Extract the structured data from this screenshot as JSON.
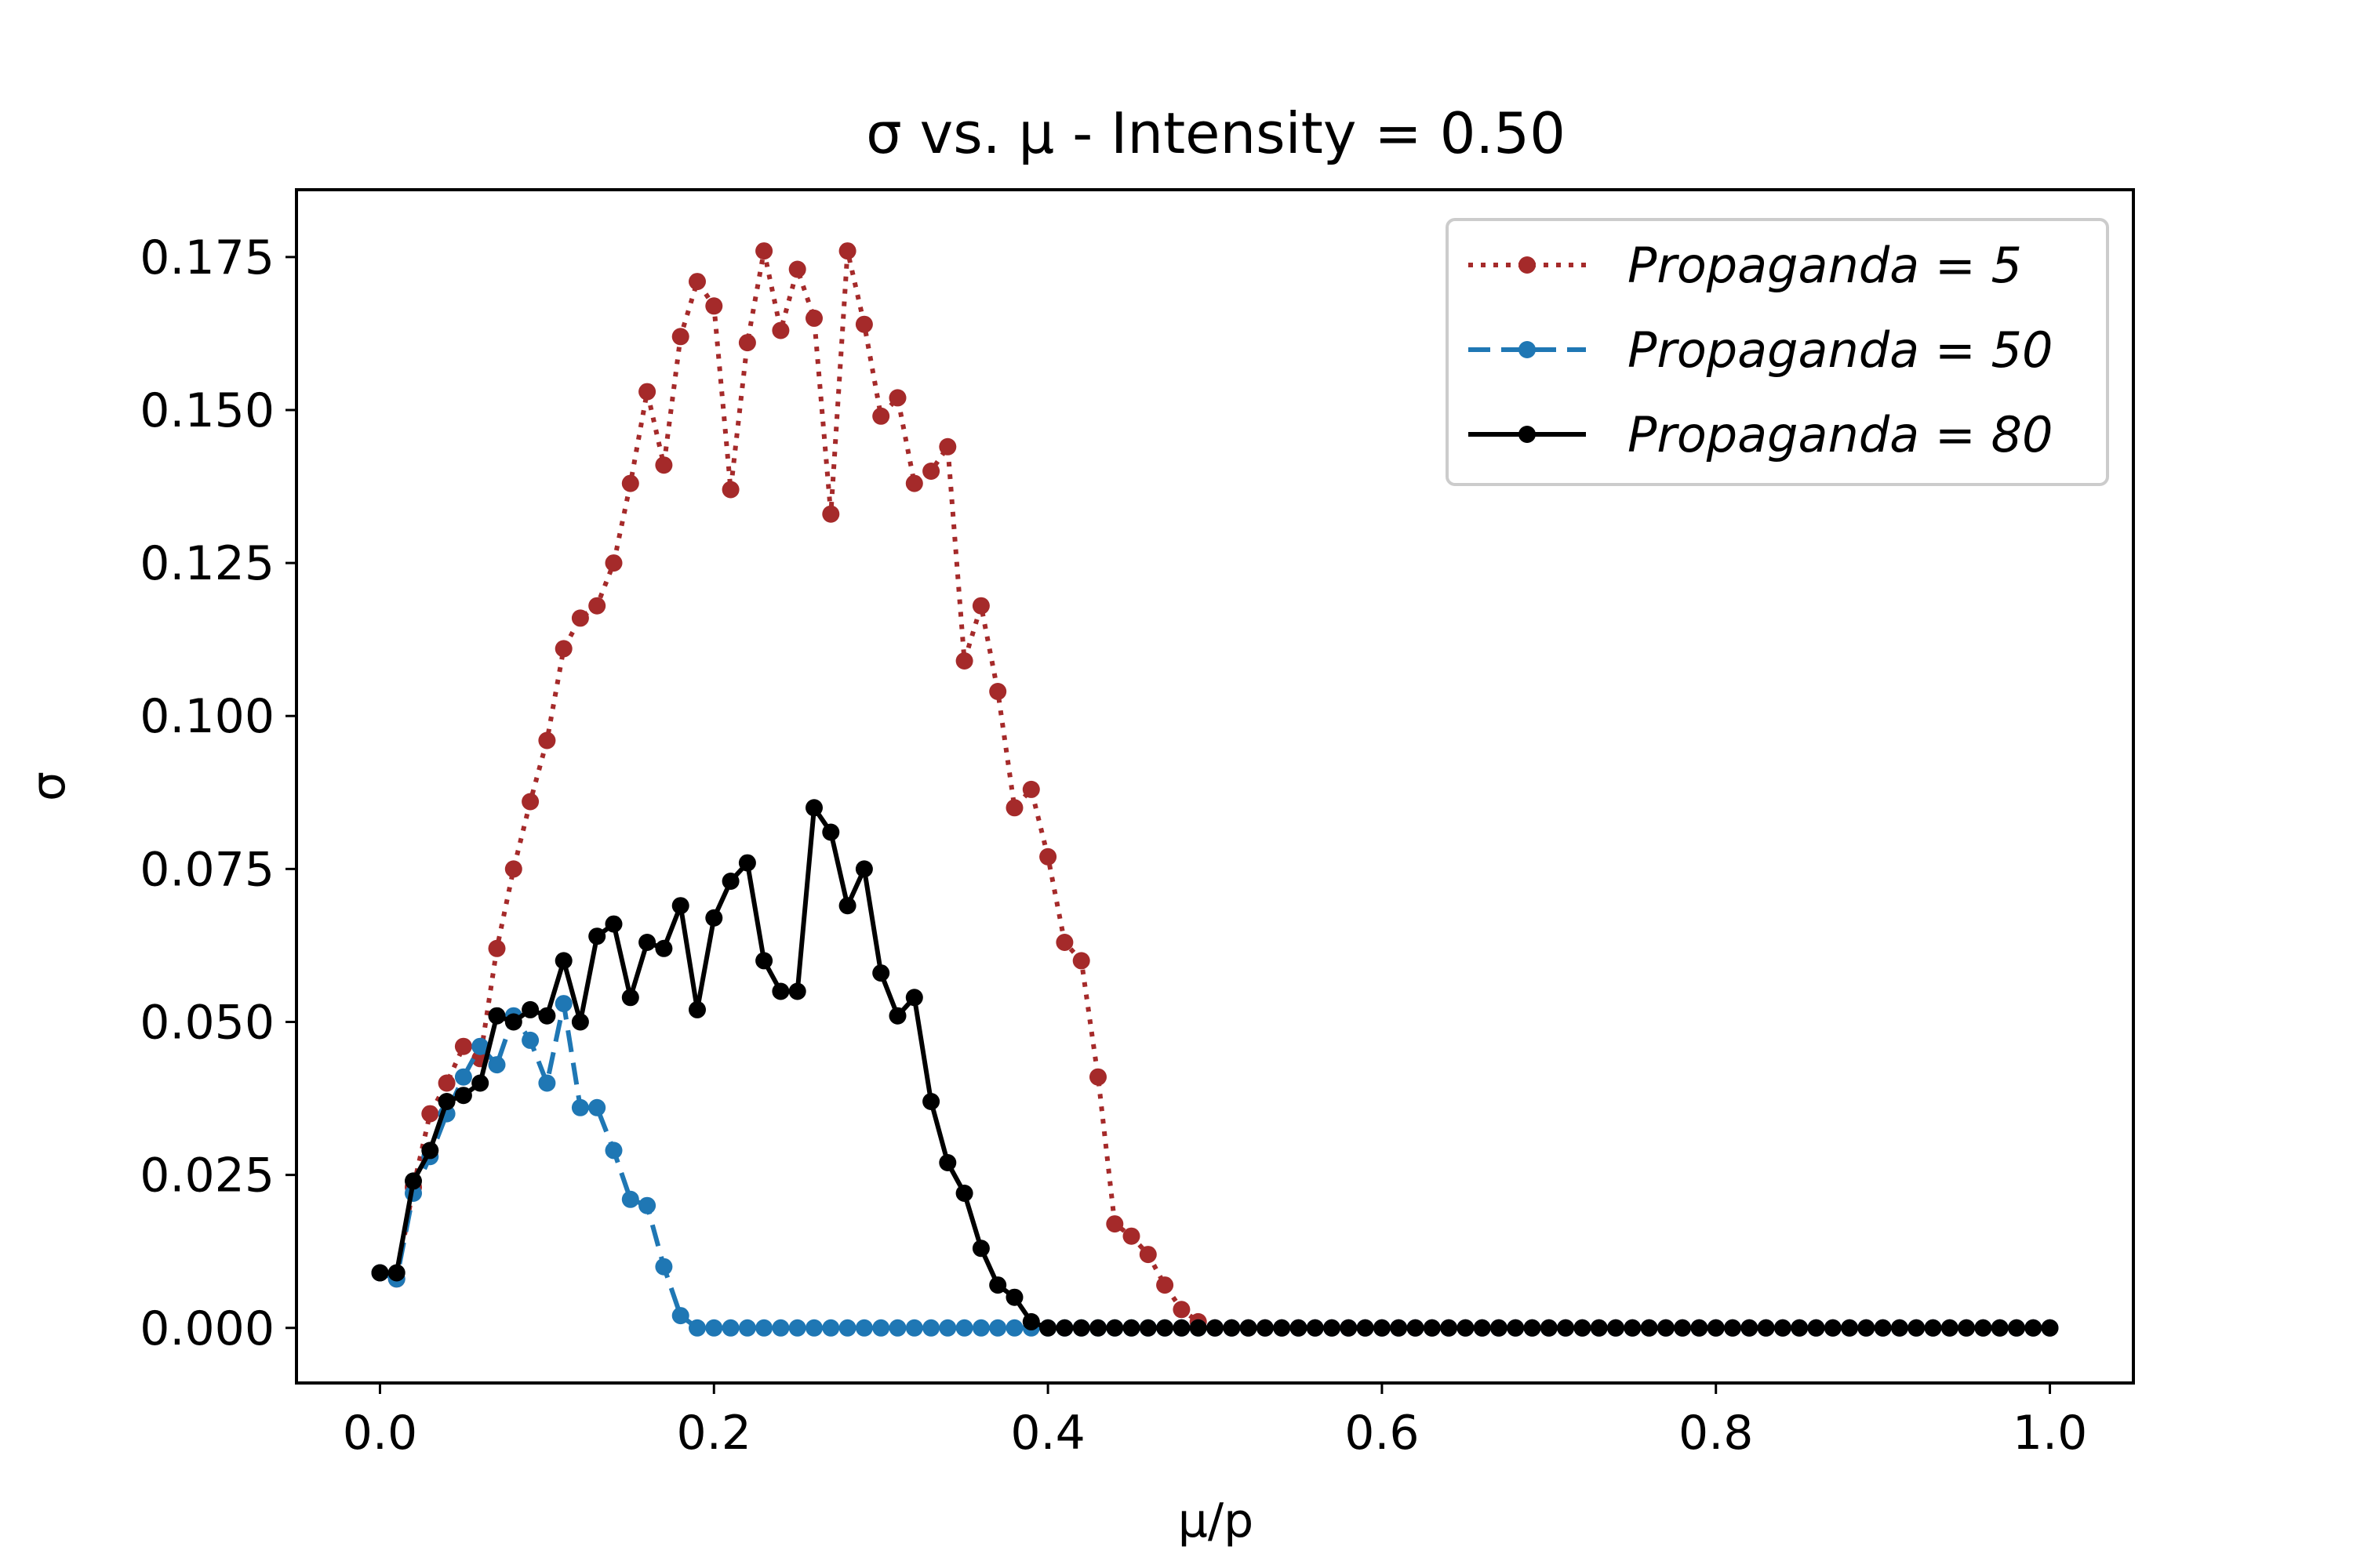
{
  "chart_data": {
    "type": "line",
    "title": "σ vs. μ - Intensity = 0.50",
    "xlabel": "μ/p",
    "ylabel": "σ",
    "xlim": [
      -0.05,
      1.05
    ],
    "ylim": [
      -0.009,
      0.186
    ],
    "xticks": [
      0.0,
      0.2,
      0.4,
      0.6,
      0.8,
      1.0
    ],
    "xtick_labels": [
      "0.0",
      "0.2",
      "0.4",
      "0.6",
      "0.8",
      "1.0"
    ],
    "yticks": [
      0.0,
      0.025,
      0.05,
      0.075,
      0.1,
      0.125,
      0.15,
      0.175
    ],
    "ytick_labels": [
      "0.000",
      "0.025",
      "0.050",
      "0.075",
      "0.100",
      "0.125",
      "0.150",
      "0.175"
    ],
    "grid": false,
    "legend_position": "top-right",
    "x": [
      0.0,
      0.01,
      0.02,
      0.03,
      0.04,
      0.05,
      0.06,
      0.07,
      0.08,
      0.09,
      0.1,
      0.11,
      0.12,
      0.13,
      0.14,
      0.15,
      0.16,
      0.17,
      0.18,
      0.19,
      0.2,
      0.21,
      0.22,
      0.23,
      0.24,
      0.25,
      0.26,
      0.27,
      0.28,
      0.29,
      0.3,
      0.31,
      0.32,
      0.33,
      0.34,
      0.35,
      0.36,
      0.37,
      0.38,
      0.39,
      0.4,
      0.41,
      0.42,
      0.43,
      0.44,
      0.45,
      0.46,
      0.47,
      0.48,
      0.49,
      0.5,
      0.51,
      0.52,
      0.53,
      0.54,
      0.55,
      0.56,
      0.57,
      0.58,
      0.59,
      0.6,
      0.61,
      0.62,
      0.63,
      0.64,
      0.65,
      0.66,
      0.67,
      0.68,
      0.69,
      0.7,
      0.71,
      0.72,
      0.73,
      0.74,
      0.75,
      0.76,
      0.77,
      0.78,
      0.79,
      0.8,
      0.81,
      0.82,
      0.83,
      0.84,
      0.85,
      0.86,
      0.87,
      0.88,
      0.89,
      0.9,
      0.91,
      0.92,
      0.93,
      0.94,
      0.95,
      0.96,
      0.97,
      0.98,
      0.99,
      1.0
    ],
    "series": [
      {
        "name": "Propaganda = 5",
        "color": "#a52a2a",
        "style": "dotted",
        "values": [
          0.009,
          0.008,
          0.023,
          0.035,
          0.04,
          0.046,
          0.044,
          0.062,
          0.075,
          0.086,
          0.096,
          0.111,
          0.116,
          0.118,
          0.125,
          0.138,
          0.153,
          0.141,
          0.162,
          0.171,
          0.167,
          0.137,
          0.161,
          0.176,
          0.163,
          0.173,
          0.165,
          0.133,
          0.176,
          0.164,
          0.149,
          0.152,
          0.138,
          0.14,
          0.144,
          0.109,
          0.118,
          0.104,
          0.085,
          0.088,
          0.077,
          0.063,
          0.06,
          0.041,
          0.017,
          0.015,
          0.012,
          0.007,
          0.003,
          0.001,
          0.0,
          0.0,
          0.0,
          0.0,
          0.0,
          0.0,
          0.0,
          0.0,
          0.0,
          0.0,
          0.0,
          0.0,
          0.0,
          0.0,
          0.0,
          0.0,
          0.0,
          0.0,
          0.0,
          0.0,
          0.0,
          0.0,
          0.0,
          0.0,
          0.0,
          0.0,
          0.0,
          0.0,
          0.0,
          0.0,
          0.0,
          0.0,
          0.0,
          0.0,
          0.0,
          0.0,
          0.0,
          0.0,
          0.0,
          0.0,
          0.0,
          0.0,
          0.0,
          0.0,
          0.0,
          0.0,
          0.0,
          0.0,
          0.0,
          0.0,
          0.0
        ]
      },
      {
        "name": "Propaganda = 50",
        "color": "#1f77b4",
        "style": "dashed",
        "values": [
          0.009,
          0.008,
          0.022,
          0.028,
          0.035,
          0.041,
          0.046,
          0.043,
          0.051,
          0.047,
          0.04,
          0.053,
          0.036,
          0.036,
          0.029,
          0.021,
          0.02,
          0.01,
          0.002,
          0.0,
          0.0,
          0.0,
          0.0,
          0.0,
          0.0,
          0.0,
          0.0,
          0.0,
          0.0,
          0.0,
          0.0,
          0.0,
          0.0,
          0.0,
          0.0,
          0.0,
          0.0,
          0.0,
          0.0,
          0.0,
          0.0,
          0.0,
          0.0,
          0.0,
          0.0,
          0.0,
          0.0,
          0.0,
          0.0,
          0.0,
          0.0,
          0.0,
          0.0,
          0.0,
          0.0,
          0.0,
          0.0,
          0.0,
          0.0,
          0.0,
          0.0,
          0.0,
          0.0,
          0.0,
          0.0,
          0.0,
          0.0,
          0.0,
          0.0,
          0.0,
          0.0,
          0.0,
          0.0,
          0.0,
          0.0,
          0.0,
          0.0,
          0.0,
          0.0,
          0.0,
          0.0,
          0.0,
          0.0,
          0.0,
          0.0,
          0.0,
          0.0,
          0.0,
          0.0,
          0.0,
          0.0,
          0.0,
          0.0,
          0.0,
          0.0,
          0.0,
          0.0,
          0.0,
          0.0,
          0.0,
          0.0
        ]
      },
      {
        "name": "Propaganda = 80",
        "color": "#000000",
        "style": "solid",
        "values": [
          0.009,
          0.009,
          0.024,
          0.029,
          0.037,
          0.038,
          0.04,
          0.051,
          0.05,
          0.052,
          0.051,
          0.06,
          0.05,
          0.064,
          0.066,
          0.054,
          0.063,
          0.062,
          0.069,
          0.052,
          0.067,
          0.073,
          0.076,
          0.06,
          0.055,
          0.055,
          0.085,
          0.081,
          0.069,
          0.075,
          0.058,
          0.051,
          0.054,
          0.037,
          0.027,
          0.022,
          0.013,
          0.007,
          0.005,
          0.001,
          0.0,
          0.0,
          0.0,
          0.0,
          0.0,
          0.0,
          0.0,
          0.0,
          0.0,
          0.0,
          0.0,
          0.0,
          0.0,
          0.0,
          0.0,
          0.0,
          0.0,
          0.0,
          0.0,
          0.0,
          0.0,
          0.0,
          0.0,
          0.0,
          0.0,
          0.0,
          0.0,
          0.0,
          0.0,
          0.0,
          0.0,
          0.0,
          0.0,
          0.0,
          0.0,
          0.0,
          0.0,
          0.0,
          0.0,
          0.0,
          0.0,
          0.0,
          0.0,
          0.0,
          0.0,
          0.0,
          0.0,
          0.0,
          0.0,
          0.0,
          0.0,
          0.0,
          0.0,
          0.0,
          0.0,
          0.0,
          0.0,
          0.0,
          0.0,
          0.0,
          0.0
        ]
      }
    ]
  }
}
